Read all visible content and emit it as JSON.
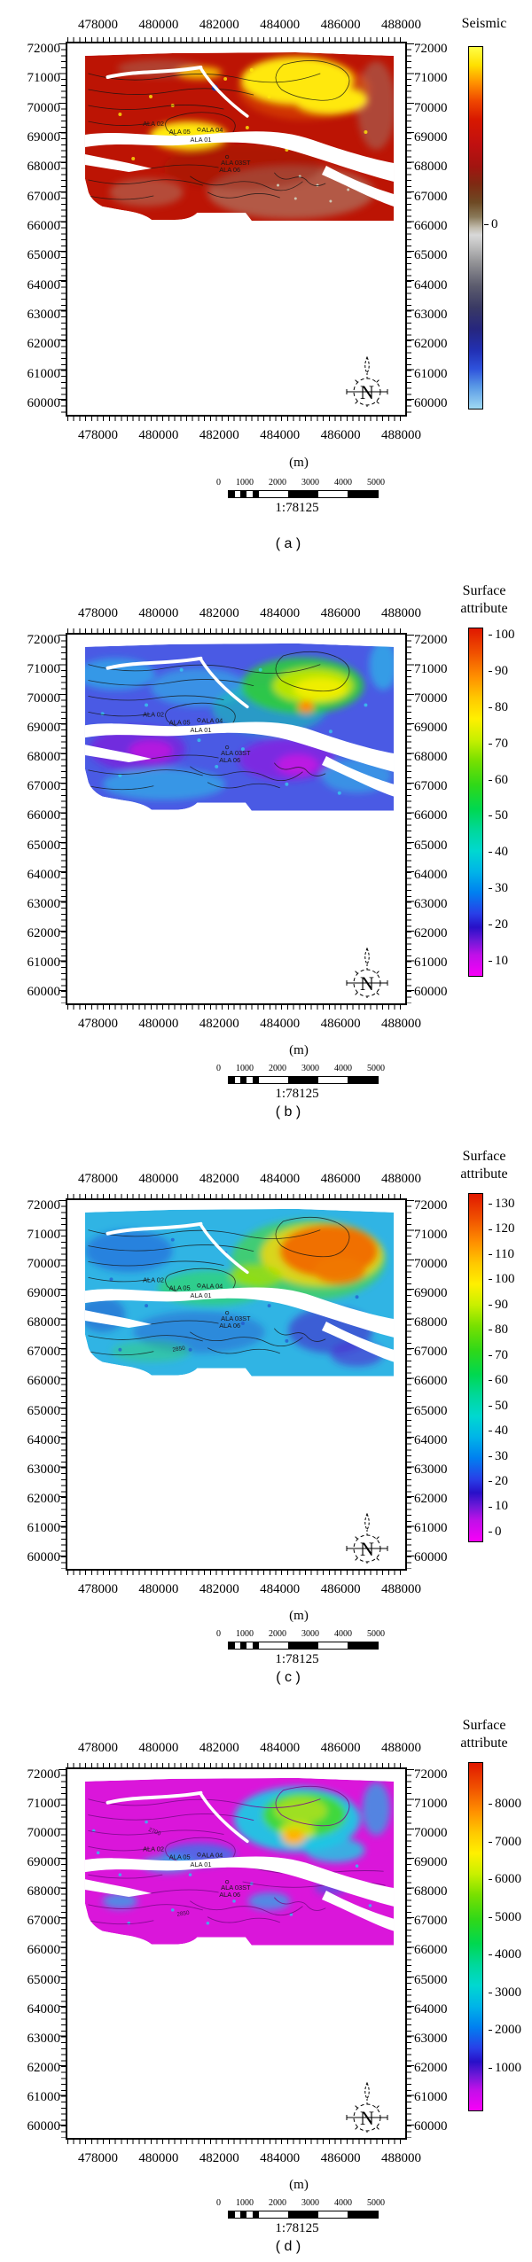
{
  "figure": {
    "axis": {
      "x_ticks": [
        "478000",
        "480000",
        "482000",
        "484000",
        "486000",
        "488000"
      ],
      "y_ticks": [
        "72000",
        "71000",
        "70000",
        "69000",
        "68000",
        "67000",
        "66000",
        "65000",
        "64000",
        "63000",
        "62000",
        "61000",
        "60000"
      ]
    },
    "footer": {
      "unit": "(m)",
      "scale_ratio": "1:78125",
      "scalebar_ticks": [
        "0",
        "1000",
        "2000",
        "3000",
        "4000",
        "5000"
      ]
    },
    "compass": {
      "letter": "N"
    },
    "wells": {
      "ala02": "ALA 02",
      "ala05": "ALA 05",
      "ala04": "ALA 04",
      "ala01": "ALA 01",
      "ala03st": "ALA 03ST",
      "ala06": "ALA 06"
    },
    "panels": [
      {
        "caption": "( a )",
        "colorbar": {
          "title1": "Seismic",
          "ticks": [
            "0"
          ]
        }
      },
      {
        "caption": "( b )",
        "colorbar": {
          "title1": "Surface",
          "title2": "attribute",
          "ticks": [
            "100",
            "90",
            "80",
            "70",
            "60",
            "50",
            "40",
            "30",
            "20",
            "10"
          ]
        }
      },
      {
        "caption": "( c )",
        "colorbar": {
          "title1": "Surface",
          "title2": "attribute",
          "ticks": [
            "130",
            "120",
            "110",
            "100",
            "90",
            "80",
            "70",
            "60",
            "50",
            "40",
            "30",
            "20",
            "10",
            "0"
          ]
        },
        "contour_labels": {
          "l1": "2850"
        }
      },
      {
        "caption": "( d )",
        "colorbar": {
          "title1": "Surface",
          "title2": "attribute",
          "ticks": [
            "8000",
            "7000",
            "6000",
            "5000",
            "4000",
            "3000",
            "2000",
            "1000"
          ]
        },
        "contour_labels": {
          "l1": "2700",
          "l2": "2850"
        }
      }
    ]
  },
  "chart_data": [
    {
      "type": "heatmap",
      "panel": "(a)",
      "colorbar_title": "Seismic",
      "x_ticks_m": [
        478000,
        480000,
        482000,
        484000,
        486000,
        488000
      ],
      "y_ticks_m": [
        72000,
        71000,
        70000,
        69000,
        68000,
        67000,
        66000,
        65000,
        64000,
        63000,
        62000,
        61000,
        60000
      ],
      "x_range_m": [
        477000,
        488500
      ],
      "y_range_m": [
        59600,
        72300
      ],
      "units": "m",
      "colorbar_tick_values": [
        0
      ],
      "colorbar_colors_top_to_bottom": [
        "yellow",
        "orange",
        "red",
        "dark red",
        "olive brown",
        "grey (at 0)",
        "dark slate",
        "navy blue",
        "blue",
        "light blue"
      ],
      "map_scale": "1:78125",
      "scalebar_m": [
        0,
        1000,
        2000,
        3000,
        4000,
        5000
      ],
      "north_arrow": true,
      "wells": [
        "ALA 02",
        "ALA 05",
        "ALA 04",
        "ALA 01",
        "ALA 03ST",
        "ALA 06"
      ],
      "pattern": "mostly dark red amplitudes; bright yellow highs in NE quadrant and around ALA 04 / ALA 01 wells; white river channels cross the map; grey speckled zones in SE and along NW edge; map data occupies upper half of frame (66300-71800 N)"
    },
    {
      "type": "heatmap",
      "panel": "(b)",
      "colorbar_title": "Surface attribute",
      "shares_axes_with": "(a)",
      "colorbar_tick_values": [
        100,
        90,
        80,
        70,
        60,
        50,
        40,
        30,
        20,
        10
      ],
      "colorbar_range": [
        0,
        100
      ],
      "palette": "rainbow (red = high, magenta = low)",
      "map_scale": "1:78125",
      "scalebar_m": [
        0,
        1000,
        2000,
        3000,
        4000,
        5000
      ],
      "north_arrow": true,
      "wells": [
        "ALA 02",
        "ALA 05",
        "ALA 04",
        "ALA 01",
        "ALA 03ST",
        "ALA 06"
      ],
      "pattern": "low-to-mid values: mottled blue, violet and cyan; magenta lows south-west of centre; high anomaly (green-yellow with orange core ~95) in NE quadrant"
    },
    {
      "type": "heatmap",
      "panel": "(c)",
      "colorbar_title": "Surface attribute",
      "shares_axes_with": "(a)",
      "colorbar_tick_values": [
        130,
        120,
        110,
        100,
        90,
        80,
        70,
        60,
        50,
        40,
        30,
        20,
        10,
        0
      ],
      "colorbar_range": [
        0,
        130
      ],
      "palette": "rainbow (red = high, magenta = low)",
      "contour_labels": [
        2850
      ],
      "map_scale": "1:78125",
      "scalebar_m": [
        0,
        1000,
        2000,
        3000,
        4000,
        5000
      ],
      "north_arrow": true,
      "wells": [
        "ALA 02",
        "ALA 05",
        "ALA 04",
        "ALA 01",
        "ALA 03ST",
        "ALA 06"
      ],
      "pattern": "mostly cyan/teal mid values with blue-violet lows SE of centre; strong orange high (~110-120) in NE quadrant ringed by yellow then green; yellow-green band near ALA wells"
    },
    {
      "type": "heatmap",
      "panel": "(d)",
      "colorbar_title": "Surface attribute",
      "shares_axes_with": "(a)",
      "colorbar_tick_values": [
        8000,
        7000,
        6000,
        5000,
        4000,
        3000,
        2000,
        1000
      ],
      "colorbar_range": [
        0,
        9000
      ],
      "palette": "rainbow (red = high, magenta = low)",
      "contour_labels": [
        2700,
        2850
      ],
      "map_scale": "1:78125",
      "scalebar_m": [
        0,
        1000,
        2000,
        3000,
        4000,
        5000
      ],
      "north_arrow": true,
      "wells": [
        "ALA 02",
        "ALA 05",
        "ALA 04",
        "ALA 01",
        "ALA 03ST",
        "ALA 06"
      ],
      "pattern": "mostly magenta lows (<1000) with scattered cyan speckles; cyan-green high (~4000-7000) with yellow-orange spot in NE quadrant; dense dark-purple structure contour lines"
    }
  ]
}
